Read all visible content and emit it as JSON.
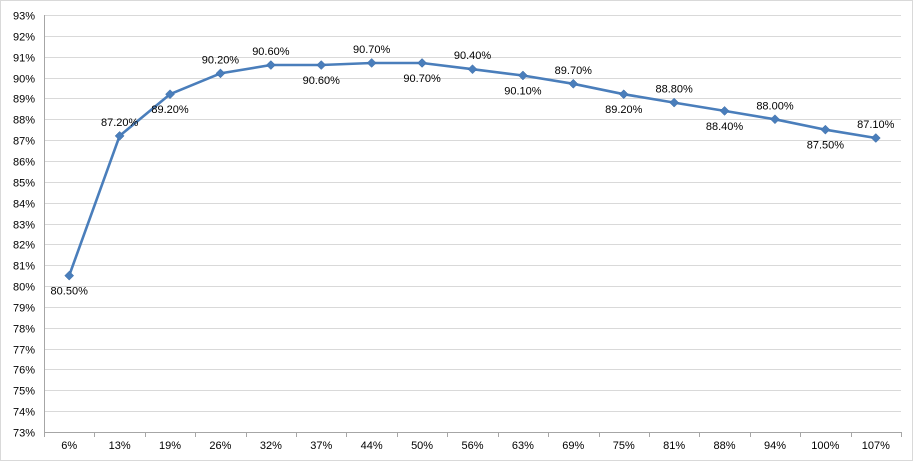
{
  "chart_data": {
    "type": "line",
    "title": "",
    "xlabel": "",
    "ylabel": "",
    "ylim": [
      73,
      93
    ],
    "y_tick_step": 1,
    "y_tick_suffix": "%",
    "grid": true,
    "legend": "none",
    "categories": [
      "6%",
      "13%",
      "19%",
      "26%",
      "32%",
      "37%",
      "44%",
      "50%",
      "56%",
      "63%",
      "69%",
      "75%",
      "81%",
      "88%",
      "94%",
      "100%",
      "107%"
    ],
    "series": [
      {
        "color": "#4a7ebb",
        "marker": "diamond",
        "values": [
          80.5,
          87.2,
          89.2,
          90.2,
          90.6,
          90.6,
          90.7,
          90.7,
          90.4,
          90.1,
          89.7,
          89.2,
          88.8,
          88.4,
          88.0,
          87.5,
          87.1
        ],
        "data_labels": [
          "80.50%",
          "87.20%",
          "89.20%",
          "90.20%",
          "90.60%",
          "90.60%",
          "90.70%",
          "90.70%",
          "90.40%",
          "90.10%",
          "89.70%",
          "89.20%",
          "88.80%",
          "88.40%",
          "88.00%",
          "87.50%",
          "87.10%"
        ],
        "label_positions": [
          "below",
          "above",
          "below",
          "above",
          "above",
          "below",
          "above",
          "below",
          "above",
          "below",
          "above",
          "below",
          "above",
          "below",
          "above",
          "below",
          "above"
        ]
      }
    ]
  }
}
